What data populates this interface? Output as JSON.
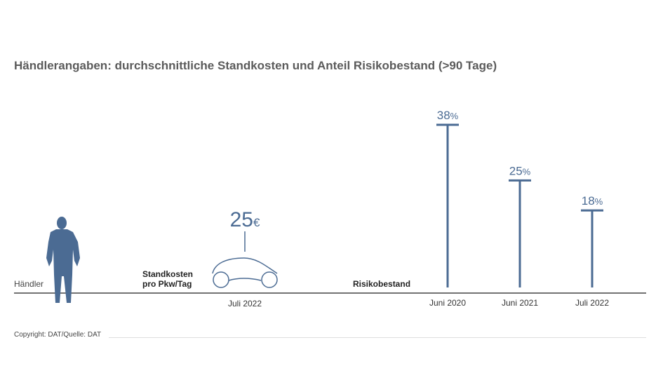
{
  "title": "Händlerangaben: durchschnittliche Standkosten und Anteil Risikobestand (>90 Tage)",
  "dealer_label": "Händler",
  "standkosten": {
    "label_line1": "Standkosten",
    "label_line2": "pro Pkw/Tag",
    "value": "25",
    "unit": "€",
    "date": "Juli 2022"
  },
  "risiko_label": "Risikobestand",
  "copyright": "Copyright: DAT/Quelle: DAT",
  "colors": {
    "accent": "#4b6b93",
    "axis": "#444444",
    "footer_line": "#dddddd"
  },
  "chart_data": [
    {
      "type": "bar",
      "categories": [
        "Juli 2022"
      ],
      "values": [
        25
      ],
      "unit": "€",
      "title": "",
      "xlabel": "Standkosten pro Pkw/Tag"
    },
    {
      "type": "bar",
      "categories": [
        "Juni 2020",
        "Juni 2021",
        "Juli 2022"
      ],
      "values": [
        38,
        25,
        18
      ],
      "unit": "%",
      "value_labels": [
        "38%",
        "25%",
        "18%"
      ],
      "title": "",
      "xlabel": "Risikobestand",
      "ylim": [
        0,
        38
      ]
    }
  ]
}
